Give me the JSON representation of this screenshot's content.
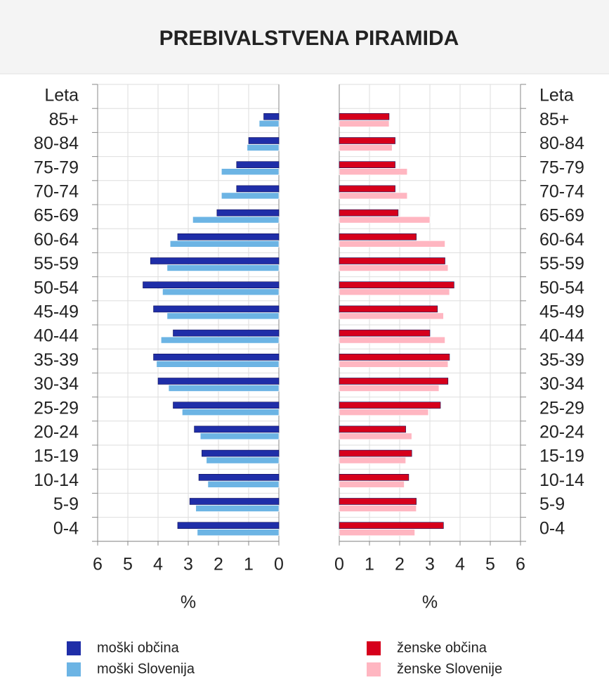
{
  "title": "PREBIVALSTVENA PIRAMIDA",
  "chart_data": [
    {
      "type": "bar",
      "orientation": "horizontal",
      "xreversed": true,
      "row_label": "Leta",
      "xlabel": "%",
      "categories": [
        "85+",
        "80-84",
        "75-79",
        "70-74",
        "65-69",
        "60-64",
        "55-59",
        "50-54",
        "45-49",
        "40-44",
        "35-39",
        "30-34",
        "25-29",
        "20-24",
        "15-19",
        "10-14",
        "5-9",
        "0-4"
      ],
      "xlim": [
        0,
        6
      ],
      "xticks": [
        0,
        1,
        2,
        3,
        4,
        5,
        6
      ],
      "grid": true,
      "series": [
        {
          "name": "moški občina",
          "color": "#1f2ea8",
          "values": [
            0.5,
            1.0,
            1.4,
            1.4,
            2.05,
            3.35,
            4.25,
            4.5,
            4.15,
            3.5,
            4.15,
            4.0,
            3.5,
            2.8,
            2.55,
            2.65,
            2.95,
            3.35
          ]
        },
        {
          "name": "moški Slovenija",
          "color": "#6cb4e4",
          "values": [
            0.65,
            1.05,
            1.9,
            1.9,
            2.85,
            3.6,
            3.7,
            3.85,
            3.7,
            3.9,
            4.05,
            3.65,
            3.2,
            2.6,
            2.4,
            2.35,
            2.75,
            2.7
          ]
        }
      ]
    },
    {
      "type": "bar",
      "orientation": "horizontal",
      "xreversed": false,
      "row_label": "Leta",
      "xlabel": "%",
      "categories": [
        "85+",
        "80-84",
        "75-79",
        "70-74",
        "65-69",
        "60-64",
        "55-59",
        "50-54",
        "45-49",
        "40-44",
        "35-39",
        "30-34",
        "25-29",
        "20-24",
        "15-19",
        "10-14",
        "5-9",
        "0-4"
      ],
      "xlim": [
        0,
        6
      ],
      "xticks": [
        0,
        1,
        2,
        3,
        4,
        5,
        6
      ],
      "grid": true,
      "series": [
        {
          "name": "ženske občina",
          "color": "#d6001c",
          "values": [
            1.65,
            1.85,
            1.85,
            1.85,
            1.95,
            2.55,
            3.5,
            3.8,
            3.25,
            3.0,
            3.65,
            3.6,
            3.35,
            2.2,
            2.4,
            2.3,
            2.55,
            3.45
          ]
        },
        {
          "name": "ženske Slovenije",
          "color": "#ffb6c1",
          "values": [
            1.65,
            1.75,
            2.25,
            2.25,
            3.0,
            3.5,
            3.6,
            3.65,
            3.45,
            3.5,
            3.6,
            3.3,
            2.95,
            2.4,
            2.2,
            2.15,
            2.55,
            2.5
          ]
        }
      ]
    }
  ]
}
